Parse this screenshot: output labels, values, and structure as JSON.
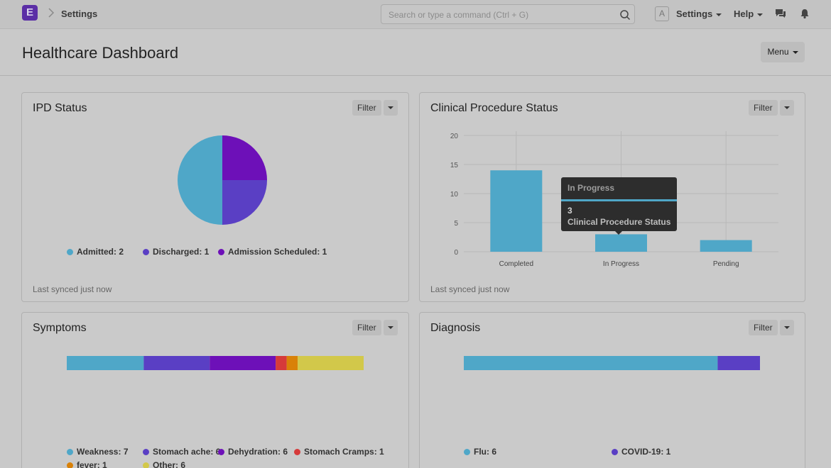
{
  "navbar": {
    "logo_letter": "E",
    "breadcrumb": "Settings",
    "search_placeholder": "Search or type a command (Ctrl + G)",
    "avatar_letter": "A",
    "settings_label": "Settings",
    "help_label": "Help"
  },
  "page": {
    "title": "Healthcare Dashboard",
    "menu_label": "Menu"
  },
  "colors": {
    "blue": "#4fa7c8",
    "indigo": "#5a3fc4",
    "purple": "#6d10b8",
    "red": "#d63a3a",
    "orange": "#d98108",
    "yellow": "#d2c84a"
  },
  "cards": {
    "ipd": {
      "title": "IPD Status",
      "filter": "Filter",
      "synced": "Last synced just now",
      "legend": [
        "Admitted: 2",
        "Discharged: 1",
        "Admission Scheduled: 1"
      ]
    },
    "procedure": {
      "title": "Clinical Procedure Status",
      "filter": "Filter",
      "synced": "Last synced just now",
      "tooltip": {
        "title": "In Progress",
        "value": "3",
        "label": "Clinical Procedure Status"
      }
    },
    "symptoms": {
      "title": "Symptoms",
      "filter": "Filter",
      "legend": [
        "Weakness: 7",
        "Stomach ache: 6",
        "Dehydration: 6",
        "Stomach Cramps: 1",
        "fever: 1",
        "Other: 6"
      ]
    },
    "diagnosis": {
      "title": "Diagnosis",
      "filter": "Filter",
      "legend": [
        "Flu: 6",
        "COVID-19: 1"
      ]
    }
  },
  "chart_data": [
    {
      "type": "pie",
      "title": "IPD Status",
      "categories": [
        "Admitted",
        "Discharged",
        "Admission Scheduled"
      ],
      "values": [
        2,
        1,
        1
      ]
    },
    {
      "type": "bar",
      "title": "Clinical Procedure Status",
      "categories": [
        "Completed",
        "In Progress",
        "Pending"
      ],
      "values": [
        14,
        3,
        2
      ],
      "ylim": [
        0,
        20
      ],
      "yticks": [
        0,
        5,
        10,
        15,
        20
      ],
      "grid": true
    },
    {
      "type": "bar",
      "title": "Symptoms",
      "orientation": "stacked-percentage",
      "categories": [
        "Weakness",
        "Stomach ache",
        "Dehydration",
        "Stomach Cramps",
        "fever",
        "Other"
      ],
      "values": [
        7,
        6,
        6,
        1,
        1,
        6
      ]
    },
    {
      "type": "bar",
      "title": "Diagnosis",
      "orientation": "stacked-percentage",
      "categories": [
        "Flu",
        "COVID-19"
      ],
      "values": [
        6,
        1
      ]
    }
  ]
}
